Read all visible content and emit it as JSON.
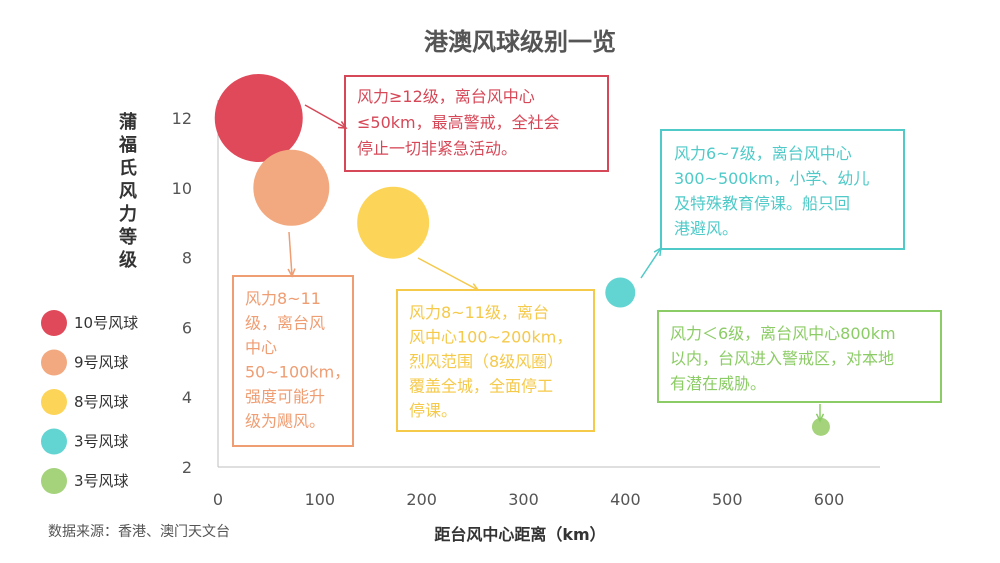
{
  "chart_data": {
    "type": "scatter",
    "title": "港澳风球级别一览",
    "xlabel": "距台风中心距离（km）",
    "ylabel": "蒲福氏风力等级",
    "xlim": [
      0,
      650
    ],
    "ylim": [
      2,
      13
    ],
    "xticks": [
      0,
      100,
      200,
      300,
      400,
      500,
      600
    ],
    "yticks": [
      2,
      4,
      6,
      8,
      10,
      12
    ],
    "points": [
      {
        "x": 40,
        "y": 12,
        "size": 44,
        "color": "#e0495a"
      },
      {
        "x": 72,
        "y": 10,
        "size": 38,
        "color": "#f2a97f"
      },
      {
        "x": 172,
        "y": 9,
        "size": 36,
        "color": "#fcd558"
      },
      {
        "x": 395,
        "y": 7,
        "size": 15,
        "color": "#62d4d2"
      },
      {
        "x": 592,
        "y": 3.15,
        "size": 9,
        "color": "#a4d37b"
      }
    ],
    "legend": [
      {
        "label": "10号风球",
        "color": "#e0495a"
      },
      {
        "label": "9号风球",
        "color": "#f2a97f"
      },
      {
        "label": "8号风球",
        "color": "#fcd558"
      },
      {
        "label": "3号风球",
        "color": "#62d4d2"
      },
      {
        "label": "3号风球",
        "color": "#a4d37b"
      }
    ],
    "annotations": [
      {
        "color": "#d64757",
        "lines": [
          "风力≥12级，离台风中心",
          "≤50km，最高警戒，全社会",
          "停止一切非紧急活动。"
        ]
      },
      {
        "color": "#ef9d72",
        "lines": [
          "风力8~11",
          "级，离台风",
          "中心",
          "50~100km，",
          "强度可能升",
          "级为飓风。"
        ]
      },
      {
        "color": "#f5c94a",
        "lines": [
          "风力8~11级，离台",
          "风中心100~200km，",
          "烈风范围（8级风圈）",
          "覆盖全城，全面停工",
          "停课。"
        ]
      },
      {
        "color": "#4fcac8",
        "lines": [
          "风力6~7级，离台风中心",
          "300~500km，小学、幼儿",
          "及特殊教育停课。船只回",
          "港避风。"
        ]
      },
      {
        "color": "#8ccc66",
        "lines": [
          "风力＜6级，离台风中心800km",
          "以内，台风进入警戒区，对本地",
          "有潜在威胁。"
        ]
      }
    ],
    "source": "数据来源：香港、澳门天文台"
  }
}
